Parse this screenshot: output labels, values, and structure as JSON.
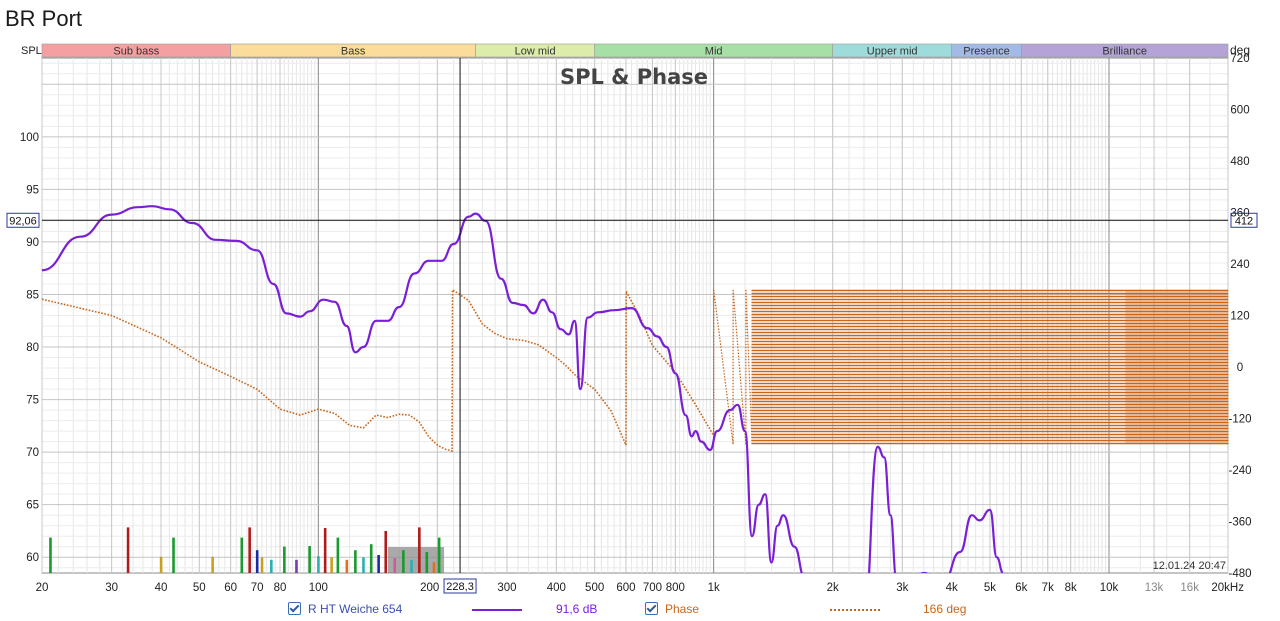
{
  "window": {
    "title": "BR Port"
  },
  "chart_data": {
    "type": "line",
    "title": "SPL & Phase",
    "left_axis_label": "SPL",
    "right_axis_label": "deg",
    "x_scale": "log",
    "xlim": [
      20,
      20000
    ],
    "ylim": [
      58.5,
      107.5
    ],
    "y2lim": [
      -480,
      720
    ],
    "x_ticks": [
      {
        "v": 20,
        "t": "20"
      },
      {
        "v": 30,
        "t": "30"
      },
      {
        "v": 40,
        "t": "40"
      },
      {
        "v": 50,
        "t": "50"
      },
      {
        "v": 60,
        "t": "60"
      },
      {
        "v": 70,
        "t": "70"
      },
      {
        "v": 80,
        "t": "80"
      },
      {
        "v": 100,
        "t": "100"
      },
      {
        "v": 200,
        "t": "200"
      },
      {
        "v": 300,
        "t": "300"
      },
      {
        "v": 400,
        "t": "400"
      },
      {
        "v": 500,
        "t": "500"
      },
      {
        "v": 600,
        "t": "600"
      },
      {
        "v": 700,
        "t": "700"
      },
      {
        "v": 800,
        "t": "800"
      },
      {
        "v": 1000,
        "t": "1k"
      },
      {
        "v": 2000,
        "t": "2k"
      },
      {
        "v": 3000,
        "t": "3k"
      },
      {
        "v": 4000,
        "t": "4k"
      },
      {
        "v": 5000,
        "t": "5k"
      },
      {
        "v": 6000,
        "t": "6k"
      },
      {
        "v": 7000,
        "t": "7k"
      },
      {
        "v": 8000,
        "t": "8k"
      },
      {
        "v": 10000,
        "t": "10k"
      },
      {
        "v": 13000,
        "t": "13k"
      },
      {
        "v": 16000,
        "t": "16k"
      },
      {
        "v": 20000,
        "t": "20kHz"
      }
    ],
    "y_ticks": [
      60,
      65,
      70,
      75,
      80,
      85,
      90,
      95,
      100
    ],
    "y2_ticks": [
      720,
      600,
      480,
      360,
      240,
      120,
      0,
      -120,
      -240,
      -360,
      -480
    ],
    "bands": [
      {
        "name": "Sub bass",
        "from": 20,
        "to": 60,
        "color": "#f4a0a0"
      },
      {
        "name": "Bass",
        "from": 60,
        "to": 250,
        "color": "#fbdc9a"
      },
      {
        "name": "Low mid",
        "from": 250,
        "to": 500,
        "color": "#dcedaa"
      },
      {
        "name": "Mid",
        "from": 500,
        "to": 2000,
        "color": "#a6e0a6"
      },
      {
        "name": "Upper mid",
        "from": 2000,
        "to": 4000,
        "color": "#9edcdc"
      },
      {
        "name": "Presence",
        "from": 4000,
        "to": 6000,
        "color": "#a3b9e6"
      },
      {
        "name": "Brilliance",
        "from": 6000,
        "to": 20000,
        "color": "#b4a4d6"
      }
    ],
    "cursor": {
      "x": 228.3,
      "x_label": "228,3",
      "y": 92.06,
      "y_label": "92,06",
      "y2_label": "412"
    },
    "timestamp": "12.01.24 20:47",
    "series": [
      {
        "name": "R HT Weiche 654",
        "color": "#7a1fd6",
        "readout": "91,6 dB",
        "x": [
          20,
          25,
          30,
          35,
          38,
          42,
          48,
          55,
          62,
          70,
          77,
          83,
          90,
          95,
          103,
          110,
          118,
          124,
          130,
          140,
          150,
          160,
          175,
          190,
          205,
          220,
          240,
          250,
          265,
          290,
          310,
          330,
          350,
          370,
          390,
          410,
          430,
          445,
          460,
          480,
          510,
          560,
          620,
          680,
          720,
          760,
          800,
          850,
          880,
          900,
          930,
          980,
          1020,
          1100,
          1150,
          1200,
          1250,
          1300,
          1350,
          1400,
          1450,
          1500,
          1600,
          1700,
          1800,
          1900,
          2000,
          2200,
          2400,
          2600,
          2700,
          2800,
          2900,
          3100,
          3400,
          3800,
          4200,
          4500,
          4700,
          5000,
          5200,
          5400
        ],
        "y": [
          87.3,
          90.5,
          92.6,
          93.3,
          93.4,
          93.1,
          91.8,
          90.2,
          90.1,
          89.2,
          86,
          83.2,
          82.9,
          83.4,
          84.5,
          84.3,
          82,
          79.5,
          80,
          82.5,
          82.5,
          83.8,
          87,
          88.2,
          88.2,
          89.8,
          92.4,
          92.7,
          92,
          86.5,
          84.2,
          84,
          83.2,
          84.5,
          83.3,
          81.7,
          81.2,
          82.5,
          76,
          82.8,
          83.3,
          83.5,
          83.7,
          81.8,
          81,
          80,
          77.5,
          73.5,
          71.5,
          72,
          71,
          70.2,
          72,
          74,
          74.5,
          72,
          62,
          65,
          66,
          59.5,
          63,
          64,
          61,
          58,
          55,
          57,
          56.5,
          58,
          54,
          70.5,
          69.5,
          64,
          58,
          57,
          58.5,
          57.5,
          60.5,
          64,
          63.5,
          64.5,
          60,
          58.5
        ]
      },
      {
        "name": "Phase",
        "color": "#c8661b",
        "readout": "166 deg",
        "x": [
          20,
          30,
          40,
          50,
          60,
          70,
          80,
          90,
          100,
          110,
          120,
          130,
          140,
          150,
          160,
          170,
          180,
          190,
          200,
          210,
          218,
          218.5,
          240,
          260,
          280,
          300,
          330,
          360,
          400,
          420,
          450,
          500,
          550,
          600,
          601,
          650,
          700,
          800,
          900,
          1000
        ],
        "y": [
          158,
          120,
          68,
          12,
          -22,
          -52,
          -98,
          -112,
          -98,
          -108,
          -136,
          -142,
          -112,
          -118,
          -110,
          -112,
          -128,
          -162,
          -182,
          -192,
          -196,
          180,
          155,
          100,
          78,
          66,
          62,
          52,
          22,
          6,
          -22,
          -52,
          -102,
          -182,
          176,
          118,
          50,
          -12,
          -88,
          -160
        ],
        "wrap_start": 1000,
        "wrap_top": 180,
        "wrap_bottom": -180
      }
    ],
    "distortion_bars": [
      {
        "x": 21,
        "h": 59,
        "c": "#1a9a2e"
      },
      {
        "x": 33,
        "h": 76,
        "c": "#b01c1c"
      },
      {
        "x": 40,
        "h": 27,
        "c": "#c8a020"
      },
      {
        "x": 43,
        "h": 59,
        "c": "#1a9a2e"
      },
      {
        "x": 54,
        "h": 27,
        "c": "#c8a020"
      },
      {
        "x": 64,
        "h": 59,
        "c": "#1a9a2e"
      },
      {
        "x": 67,
        "h": 76,
        "c": "#b01c1c"
      },
      {
        "x": 70,
        "h": 38,
        "c": "#1a2aa0"
      },
      {
        "x": 72,
        "h": 26,
        "c": "#c8a020"
      },
      {
        "x": 76,
        "h": 22,
        "c": "#2bb0b0"
      },
      {
        "x": 82,
        "h": 44,
        "c": "#1a9a2e"
      },
      {
        "x": 88,
        "h": 22,
        "c": "#7a3ab0"
      },
      {
        "x": 95,
        "h": 45,
        "c": "#1a9a2e"
      },
      {
        "x": 100,
        "h": 28,
        "c": "#2bb0b0"
      },
      {
        "x": 104,
        "h": 75,
        "c": "#b01c1c"
      },
      {
        "x": 108,
        "h": 26,
        "c": "#c8a020"
      },
      {
        "x": 112,
        "h": 59,
        "c": "#1a9a2e"
      },
      {
        "x": 118,
        "h": 22,
        "c": "#e07020"
      },
      {
        "x": 124,
        "h": 38,
        "c": "#1a9a2e"
      },
      {
        "x": 130,
        "h": 26,
        "c": "#2bb0b0"
      },
      {
        "x": 136,
        "h": 48,
        "c": "#1a9a2e"
      },
      {
        "x": 142,
        "h": 30,
        "c": "#1a2aa0"
      },
      {
        "x": 148,
        "h": 70,
        "c": "#b01c1c"
      },
      {
        "x": 156,
        "h": 25,
        "c": "#d05aa0"
      },
      {
        "x": 164,
        "h": 38,
        "c": "#1a9a2e"
      },
      {
        "x": 172,
        "h": 22,
        "c": "#2bb0b0"
      },
      {
        "x": 180,
        "h": 76,
        "c": "#b01c1c"
      },
      {
        "x": 188,
        "h": 35,
        "c": "#1a9a2e"
      },
      {
        "x": 196,
        "h": 18,
        "c": "#e07020"
      },
      {
        "x": 202,
        "h": 59,
        "c": "#1a9a2e"
      }
    ]
  },
  "legend": [
    {
      "label": "R HT Weiche 654",
      "readout": "91,6 dB"
    },
    {
      "label": "Phase",
      "readout": "166 deg"
    }
  ]
}
